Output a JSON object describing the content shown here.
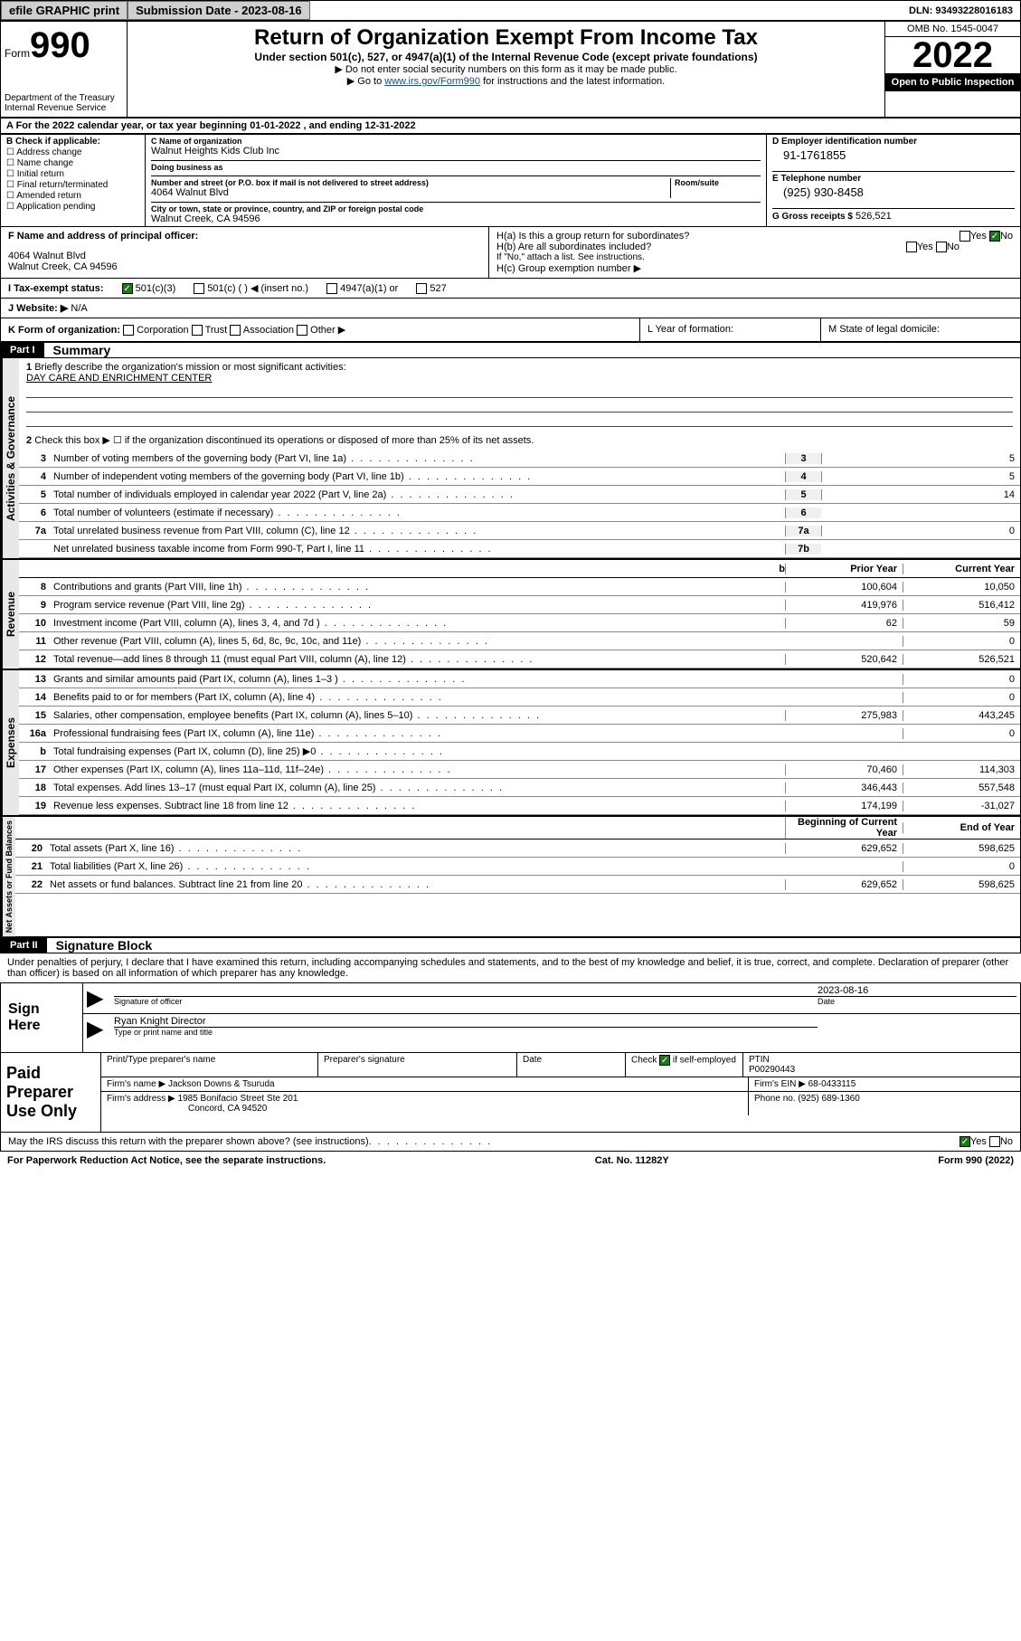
{
  "topbar": {
    "efile": "efile GRAPHIC print",
    "submission_label": "Submission Date - 2023-08-16",
    "dln_label": "DLN: 93493228016183"
  },
  "header": {
    "form_label": "Form",
    "form_number": "990",
    "dept": "Department of the Treasury",
    "irs": "Internal Revenue Service",
    "title": "Return of Organization Exempt From Income Tax",
    "sub": "Under section 501(c), 527, or 4947(a)(1) of the Internal Revenue Code (except private foundations)",
    "note1": "▶ Do not enter social security numbers on this form as it may be made public.",
    "note2_pre": "▶ Go to ",
    "note2_link": "www.irs.gov/Form990",
    "note2_post": " for instructions and the latest information.",
    "omb": "OMB No. 1545-0047",
    "year": "2022",
    "open": "Open to Public Inspection"
  },
  "section_a": "A For the 2022 calendar year, or tax year beginning 01-01-2022   , and ending 12-31-2022",
  "checkboxes": {
    "header": "B Check if applicable:",
    "items": [
      "Address change",
      "Name change",
      "Initial return",
      "Final return/terminated",
      "Amended return",
      "Application pending"
    ]
  },
  "org": {
    "c_label": "C Name of organization",
    "name": "Walnut Heights Kids Club Inc",
    "dba_label": "Doing business as",
    "addr_label": "Number and street (or P.O. box if mail is not delivered to street address)",
    "room_label": "Room/suite",
    "street": "4064 Walnut Blvd",
    "city_label": "City or town, state or province, country, and ZIP or foreign postal code",
    "city": "Walnut Creek, CA  94596"
  },
  "right": {
    "d_label": "D Employer identification number",
    "ein": "91-1761855",
    "e_label": "E Telephone number",
    "phone": "(925) 930-8458",
    "g_label": "G Gross receipts $",
    "gross": "526,521"
  },
  "officer": {
    "f_label": "F Name and address of principal officer:",
    "addr1": "4064 Walnut Blvd",
    "addr2": "Walnut Creek, CA  94596",
    "ha": "H(a)  Is this a group return for subordinates?",
    "ha_yes": "Yes",
    "ha_no": "No",
    "hb": "H(b)  Are all subordinates included?",
    "hb_note": "If \"No,\" attach a list. See instructions.",
    "hc": "H(c)  Group exemption number ▶"
  },
  "status": {
    "i_label": "I   Tax-exempt status:",
    "opts": [
      "501(c)(3)",
      "501(c) (  ) ◀ (insert no.)",
      "4947(a)(1) or",
      "527"
    ],
    "j_label": "J   Website: ▶",
    "website": "N/A"
  },
  "kl": {
    "k": "K Form of organization:",
    "k_opts": [
      "Corporation",
      "Trust",
      "Association",
      "Other ▶"
    ],
    "l": "L Year of formation:",
    "m": "M State of legal domicile:"
  },
  "part1": {
    "label": "Part I",
    "title": "Summary",
    "q1": "Briefly describe the organization's mission or most significant activities:",
    "mission": "DAY CARE AND ENRICHMENT CENTER",
    "q2": "Check this box ▶ ☐  if the organization discontinued its operations or disposed of more than 25% of its net assets.",
    "rows_gov": [
      {
        "n": "3",
        "d": "Number of voting members of the governing body (Part VI, line 1a)",
        "box": "3",
        "v": "5"
      },
      {
        "n": "4",
        "d": "Number of independent voting members of the governing body (Part VI, line 1b)",
        "box": "4",
        "v": "5"
      },
      {
        "n": "5",
        "d": "Total number of individuals employed in calendar year 2022 (Part V, line 2a)",
        "box": "5",
        "v": "14"
      },
      {
        "n": "6",
        "d": "Total number of volunteers (estimate if necessary)",
        "box": "6",
        "v": ""
      },
      {
        "n": "7a",
        "d": "Total unrelated business revenue from Part VIII, column (C), line 12",
        "box": "7a",
        "v": "0"
      },
      {
        "n": "",
        "d": "Net unrelated business taxable income from Form 990-T, Part I, line 11",
        "box": "7b",
        "v": ""
      }
    ],
    "col_prior": "Prior Year",
    "col_current": "Current Year",
    "rows_rev": [
      {
        "n": "8",
        "d": "Contributions and grants (Part VIII, line 1h)",
        "p": "100,604",
        "c": "10,050"
      },
      {
        "n": "9",
        "d": "Program service revenue (Part VIII, line 2g)",
        "p": "419,976",
        "c": "516,412"
      },
      {
        "n": "10",
        "d": "Investment income (Part VIII, column (A), lines 3, 4, and 7d )",
        "p": "62",
        "c": "59"
      },
      {
        "n": "11",
        "d": "Other revenue (Part VIII, column (A), lines 5, 6d, 8c, 9c, 10c, and 11e)",
        "p": "",
        "c": "0"
      },
      {
        "n": "12",
        "d": "Total revenue—add lines 8 through 11 (must equal Part VIII, column (A), line 12)",
        "p": "520,642",
        "c": "526,521"
      }
    ],
    "rows_exp": [
      {
        "n": "13",
        "d": "Grants and similar amounts paid (Part IX, column (A), lines 1–3 )",
        "p": "",
        "c": "0"
      },
      {
        "n": "14",
        "d": "Benefits paid to or for members (Part IX, column (A), line 4)",
        "p": "",
        "c": "0"
      },
      {
        "n": "15",
        "d": "Salaries, other compensation, employee benefits (Part IX, column (A), lines 5–10)",
        "p": "275,983",
        "c": "443,245"
      },
      {
        "n": "16a",
        "d": "Professional fundraising fees (Part IX, column (A), line 11e)",
        "p": "",
        "c": "0"
      },
      {
        "n": "b",
        "d": "Total fundraising expenses (Part IX, column (D), line 25) ▶0",
        "p": "",
        "c": ""
      },
      {
        "n": "17",
        "d": "Other expenses (Part IX, column (A), lines 11a–11d, 11f–24e)",
        "p": "70,460",
        "c": "114,303"
      },
      {
        "n": "18",
        "d": "Total expenses. Add lines 13–17 (must equal Part IX, column (A), line 25)",
        "p": "346,443",
        "c": "557,548"
      },
      {
        "n": "19",
        "d": "Revenue less expenses. Subtract line 18 from line 12",
        "p": "174,199",
        "c": "-31,027"
      }
    ],
    "col_begin": "Beginning of Current Year",
    "col_end": "End of Year",
    "rows_net": [
      {
        "n": "20",
        "d": "Total assets (Part X, line 16)",
        "p": "629,652",
        "c": "598,625"
      },
      {
        "n": "21",
        "d": "Total liabilities (Part X, line 26)",
        "p": "",
        "c": "0"
      },
      {
        "n": "22",
        "d": "Net assets or fund balances. Subtract line 21 from line 20",
        "p": "629,652",
        "c": "598,625"
      }
    ],
    "vert_gov": "Activities & Governance",
    "vert_rev": "Revenue",
    "vert_exp": "Expenses",
    "vert_net": "Net Assets or Fund Balances"
  },
  "part2": {
    "label": "Part II",
    "title": "Signature Block",
    "decl": "Under penalties of perjury, I declare that I have examined this return, including accompanying schedules and statements, and to the best of my knowledge and belief, it is true, correct, and complete. Declaration of preparer (other than officer) is based on all information of which preparer has any knowledge.",
    "sign_here": "Sign Here",
    "sig_officer": "Signature of officer",
    "sig_date": "2023-08-16",
    "date_label": "Date",
    "officer_name": "Ryan Knight  Director",
    "officer_sub": "Type or print name and title",
    "paid": "Paid Preparer Use Only",
    "prep_name_label": "Print/Type preparer's name",
    "prep_sig_label": "Preparer's signature",
    "prep_date_label": "Date",
    "check_if": "Check ☑ if self-employed",
    "ptin_label": "PTIN",
    "ptin": "P00290443",
    "firm_name_label": "Firm's name    ▶",
    "firm_name": "Jackson Downs & Tsuruda",
    "firm_ein_label": "Firm's EIN ▶",
    "firm_ein": "68-0433115",
    "firm_addr_label": "Firm's address ▶",
    "firm_addr": "1985 Bonifacio Street Ste 201",
    "firm_city": "Concord, CA  94520",
    "phone_label": "Phone no.",
    "phone": "(925) 689-1360",
    "may_irs": "May the IRS discuss this return with the preparer shown above? (see instructions)",
    "yes": "Yes",
    "no": "No"
  },
  "footer": {
    "paperwork": "For Paperwork Reduction Act Notice, see the separate instructions.",
    "cat": "Cat. No. 11282Y",
    "form": "Form 990 (2022)"
  },
  "colors": {
    "link": "#1a4b8c",
    "check_green": "#1a7a1a",
    "header_bg": "#000000",
    "grey_btn": "#cfcfcf"
  }
}
